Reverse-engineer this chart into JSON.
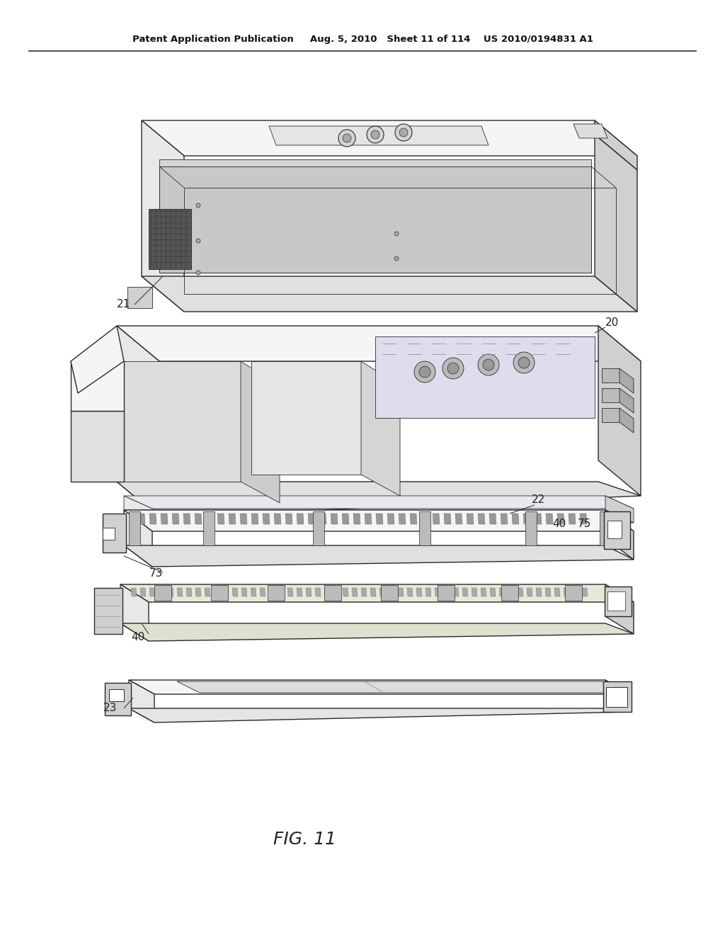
{
  "background_color": "#ffffff",
  "header_text": "Patent Application Publication     Aug. 5, 2010   Sheet 11 of 114    US 2010/0194831 A1",
  "fig_label": "FIG. 11",
  "line_color": "#2a2a2a",
  "light_gray": "#e8e8e8",
  "mid_gray": "#d0d0d0",
  "dark_gray": "#b0b0b0",
  "very_light": "#f5f5f5",
  "lw_main": 1.0,
  "lw_thin": 0.6
}
